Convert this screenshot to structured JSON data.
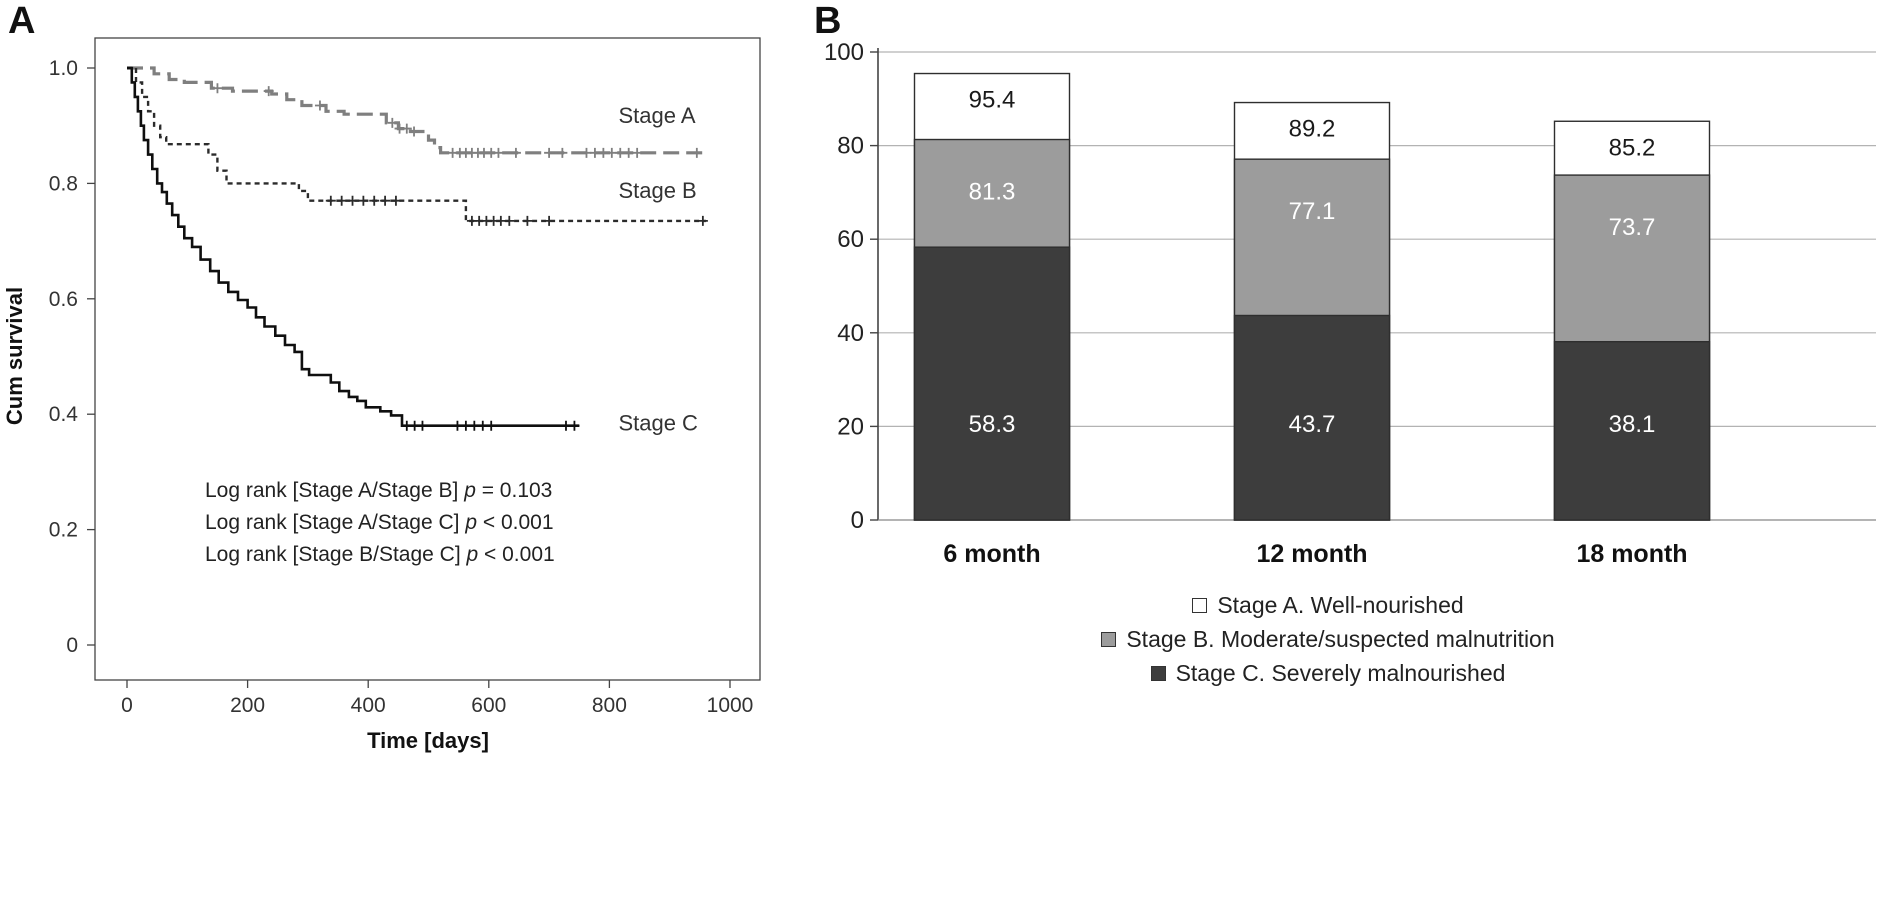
{
  "panels": {
    "a": {
      "label": "A"
    },
    "b": {
      "label": "B"
    }
  },
  "chart_data": [
    {
      "type": "line",
      "subtype": "kaplan-meier-step",
      "title": "",
      "xlabel": "Time [days]",
      "ylabel": "Cum survival",
      "xlim": [
        0,
        1000
      ],
      "ylim": [
        0,
        1.0
      ],
      "xtick_values": [
        0,
        200,
        400,
        600,
        800,
        1000
      ],
      "xtick_labels": [
        "0",
        "200",
        "400",
        "600",
        "800",
        "1000"
      ],
      "ytick_values": [
        0,
        0.2,
        0.4,
        0.6,
        0.8,
        1.0
      ],
      "ytick_labels": [
        "0",
        "0.2",
        "0.4",
        "0.6",
        "0.8",
        "1.0"
      ],
      "series": [
        {
          "name": "Stage A",
          "line": "long-dash",
          "color": "#7f7f7f",
          "label_at": [
            815,
            0.905
          ],
          "points": [
            [
              0,
              1.0
            ],
            [
              45,
              0.99
            ],
            [
              70,
              0.98
            ],
            [
              95,
              0.975
            ],
            [
              140,
              0.965
            ],
            [
              175,
              0.96
            ],
            [
              240,
              0.955
            ],
            [
              265,
              0.945
            ],
            [
              290,
              0.935
            ],
            [
              330,
              0.925
            ],
            [
              360,
              0.92
            ],
            [
              430,
              0.905
            ],
            [
              450,
              0.895
            ],
            [
              470,
              0.89
            ],
            [
              500,
              0.875
            ],
            [
              510,
              0.862
            ],
            [
              520,
              0.853
            ],
            [
              960,
              0.853
            ]
          ],
          "censor_times": [
            150,
            235,
            320,
            440,
            452,
            464,
            476,
            540,
            552,
            562,
            572,
            582,
            592,
            604,
            616,
            645,
            700,
            722,
            762,
            776,
            790,
            804,
            818,
            832,
            846,
            945
          ]
        },
        {
          "name": "Stage B",
          "line": "short-dash",
          "color": "#2b2b2b",
          "label_at": [
            815,
            0.775
          ],
          "points": [
            [
              0,
              1.0
            ],
            [
              15,
              0.975
            ],
            [
              25,
              0.95
            ],
            [
              35,
              0.925
            ],
            [
              45,
              0.9
            ],
            [
              55,
              0.88
            ],
            [
              65,
              0.868
            ],
            [
              135,
              0.85
            ],
            [
              150,
              0.822
            ],
            [
              165,
              0.8
            ],
            [
              285,
              0.787
            ],
            [
              300,
              0.77
            ],
            [
              562,
              0.735
            ],
            [
              960,
              0.735
            ]
          ],
          "censor_times": [
            338,
            356,
            374,
            392,
            410,
            428,
            446,
            572,
            584,
            596,
            608,
            620,
            634,
            664,
            700,
            955
          ]
        },
        {
          "name": "Stage C",
          "line": "solid",
          "color": "#0f0f0f",
          "label_at": [
            815,
            0.372
          ],
          "points": [
            [
              0,
              1.0
            ],
            [
              8,
              0.975
            ],
            [
              13,
              0.95
            ],
            [
              18,
              0.925
            ],
            [
              23,
              0.9
            ],
            [
              28,
              0.875
            ],
            [
              35,
              0.85
            ],
            [
              42,
              0.825
            ],
            [
              50,
              0.8
            ],
            [
              58,
              0.785
            ],
            [
              66,
              0.765
            ],
            [
              75,
              0.745
            ],
            [
              85,
              0.725
            ],
            [
              95,
              0.705
            ],
            [
              108,
              0.69
            ],
            [
              122,
              0.668
            ],
            [
              138,
              0.648
            ],
            [
              152,
              0.628
            ],
            [
              168,
              0.612
            ],
            [
              184,
              0.598
            ],
            [
              200,
              0.585
            ],
            [
              214,
              0.568
            ],
            [
              228,
              0.552
            ],
            [
              246,
              0.536
            ],
            [
              262,
              0.52
            ],
            [
              278,
              0.508
            ],
            [
              290,
              0.478
            ],
            [
              302,
              0.468
            ],
            [
              338,
              0.455
            ],
            [
              352,
              0.44
            ],
            [
              368,
              0.43
            ],
            [
              382,
              0.423
            ],
            [
              396,
              0.412
            ],
            [
              420,
              0.405
            ],
            [
              438,
              0.398
            ],
            [
              456,
              0.38
            ],
            [
              750,
              0.38
            ]
          ],
          "censor_times": [
            464,
            477,
            490,
            548,
            562,
            576,
            590,
            604,
            728,
            742
          ]
        }
      ],
      "annotations": [
        "Log rank [Stage A/Stage B] p = 0.103",
        "Log rank [Stage A/Stage C] p < 0.001",
        "Log rank [Stage B/Stage C] p < 0.001"
      ]
    },
    {
      "type": "bar",
      "subtype": "overlapped",
      "categories": [
        "6 month",
        "12 month",
        "18 month"
      ],
      "series": [
        {
          "name": "Stage A. Well-nourished",
          "color": "#ffffff",
          "text_color": "#1a1a1a",
          "values": [
            95.4,
            89.2,
            85.2
          ]
        },
        {
          "name": "Stage B. Moderate/suspected malnutrition",
          "color": "#9c9c9c",
          "text_color": "#ffffff",
          "values": [
            81.3,
            77.1,
            73.7
          ]
        },
        {
          "name": "Stage C. Severely malnourished",
          "color": "#3d3d3d",
          "text_color": "#ffffff",
          "values": [
            58.3,
            43.7,
            38.1
          ]
        }
      ],
      "ylim": [
        0,
        100
      ],
      "ytick_values": [
        0,
        20,
        40,
        60,
        80,
        100
      ],
      "ytick_labels": [
        "0",
        "20",
        "40",
        "60",
        "80",
        "100"
      ],
      "grid": true,
      "legend_position": "bottom"
    }
  ]
}
